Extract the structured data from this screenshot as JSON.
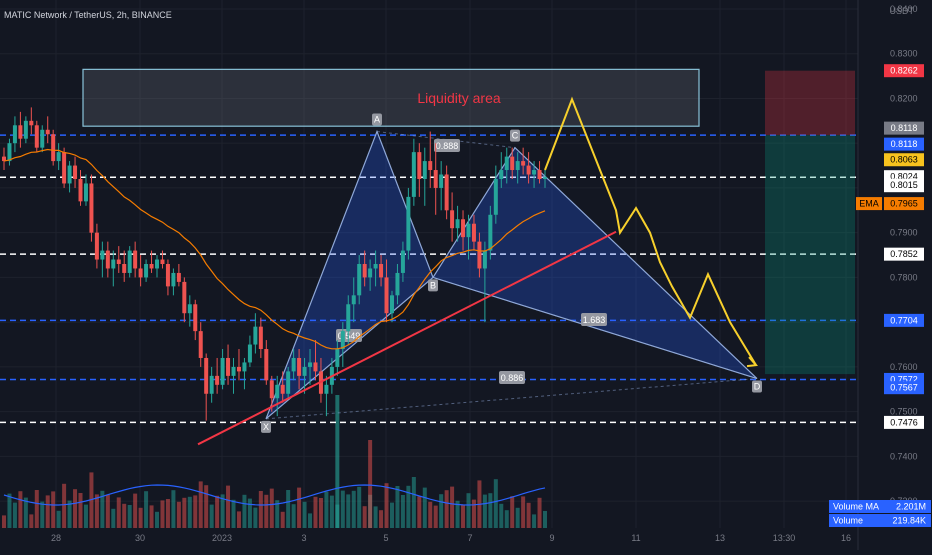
{
  "header": {
    "symbol": "MATIC Network / TetherUS, 2h, BINANCE",
    "unit": "USDT"
  },
  "liquidity_label": "Liquidity area",
  "price_tags": [
    {
      "value": "0.8262",
      "bg": "#f23645",
      "fg": "#ffffff"
    },
    {
      "value": "0.8118",
      "bg": "#787b86",
      "fg": "#ffffff"
    },
    {
      "value": "0.8118",
      "bg": "#2962ff",
      "fg": "#ffffff"
    },
    {
      "value": "0.8063",
      "bg": "#f7c31e",
      "fg": "#000000"
    },
    {
      "value": "0.8024",
      "bg": "#ffffff",
      "fg": "#000000",
      "sub": "01:45:52"
    },
    {
      "value": "0.8015",
      "bg": "#ffffff",
      "fg": "#000000"
    },
    {
      "value": "0.7965",
      "bg": "#f57c00",
      "fg": "#000000",
      "label": "EMA"
    },
    {
      "value": "0.7852",
      "bg": "#ffffff",
      "fg": "#000000"
    },
    {
      "value": "0.7704",
      "bg": "#2962ff",
      "fg": "#ffffff"
    },
    {
      "value": "0.7572",
      "bg": "#2962ff",
      "fg": "#ffffff"
    },
    {
      "value": "0.7567",
      "bg": "#2962ff",
      "fg": "#ffffff"
    },
    {
      "value": "0.7476",
      "bg": "#ffffff",
      "fg": "#000000"
    }
  ],
  "volume_tags": [
    {
      "label": "Volume MA",
      "value": "2.201M"
    },
    {
      "label": "Volume",
      "value": "219.84K"
    }
  ],
  "pattern": {
    "points": [
      {
        "name": "X",
        "x": "Jan 2",
        "y": 0.7484
      },
      {
        "name": "A",
        "x": "Jan 4 20:00",
        "y": 0.8126
      },
      {
        "name": "B",
        "x": "Jan 6 10:00",
        "y": 0.78
      },
      {
        "name": "C",
        "x": "Jan 7 20:00",
        "y": 0.809
      },
      {
        "name": "D",
        "x": "Jan 14 12:00",
        "y": 0.7574
      }
    ],
    "ratios": [
      "0.888",
      "0.549",
      "1.683",
      "0.886"
    ]
  },
  "chart_data": {
    "type": "candlestick",
    "title": "MATIC Network / TetherUS, 2h, BINANCE",
    "xlabel": "",
    "ylabel": "USDT",
    "x_ticks": [
      "28",
      "30",
      "2023",
      "3",
      "5",
      "7",
      "9",
      "11",
      "13",
      "13:30",
      "16"
    ],
    "y_ticks": [
      0.73,
      0.74,
      0.75,
      0.76,
      0.77,
      0.78,
      0.79,
      0.8,
      0.81,
      0.82,
      0.83,
      0.84
    ],
    "ylim": [
      0.724,
      0.842
    ],
    "levels_blue_dashed": [
      0.8118,
      0.7704,
      0.7572
    ],
    "levels_white_dashed": [
      0.8024,
      0.7852,
      0.7476
    ],
    "liquidity_area": {
      "y_top": 0.8265,
      "y_bottom": 0.8138
    },
    "position": {
      "entry": 0.8118,
      "stop": 0.8262,
      "target": 0.7584
    },
    "trendline": [
      {
        "x": "Dec 31 12:00",
        "y": 0.7427
      },
      {
        "x": "Jan 10 04:00",
        "y": 0.7902
      }
    ],
    "projection_path": [
      0.804,
      0.8198,
      0.804,
      0.795,
      0.79,
      0.7955,
      0.79,
      0.7834,
      0.778,
      0.771,
      0.7807,
      0.77,
      0.7604
    ],
    "series": [
      {
        "name": "EMA",
        "last": 0.7965
      },
      {
        "name": "Volume MA",
        "last": "2.201M"
      },
      {
        "name": "Volume",
        "last": "219.84K"
      }
    ],
    "candles": [
      [
        0.807,
        0.809,
        0.804,
        0.806
      ],
      [
        0.806,
        0.811,
        0.805,
        0.81
      ],
      [
        0.81,
        0.816,
        0.808,
        0.814
      ],
      [
        0.814,
        0.817,
        0.809,
        0.811
      ],
      [
        0.811,
        0.816,
        0.81,
        0.815
      ],
      [
        0.815,
        0.818,
        0.812,
        0.814
      ],
      [
        0.814,
        0.815,
        0.808,
        0.809
      ],
      [
        0.809,
        0.814,
        0.808,
        0.813
      ],
      [
        0.813,
        0.816,
        0.81,
        0.812
      ],
      [
        0.812,
        0.813,
        0.805,
        0.806
      ],
      [
        0.806,
        0.81,
        0.804,
        0.808
      ],
      [
        0.808,
        0.809,
        0.8,
        0.801
      ],
      [
        0.801,
        0.806,
        0.799,
        0.805
      ],
      [
        0.805,
        0.807,
        0.8,
        0.802
      ],
      [
        0.802,
        0.804,
        0.796,
        0.797
      ],
      [
        0.797,
        0.803,
        0.796,
        0.801
      ],
      [
        0.801,
        0.803,
        0.788,
        0.79
      ],
      [
        0.79,
        0.792,
        0.782,
        0.784
      ],
      [
        0.784,
        0.788,
        0.78,
        0.786
      ],
      [
        0.786,
        0.788,
        0.78,
        0.782
      ],
      [
        0.782,
        0.786,
        0.778,
        0.784
      ],
      [
        0.784,
        0.787,
        0.781,
        0.783
      ],
      [
        0.783,
        0.786,
        0.779,
        0.781
      ],
      [
        0.781,
        0.787,
        0.78,
        0.786
      ],
      [
        0.786,
        0.788,
        0.78,
        0.782
      ],
      [
        0.782,
        0.785,
        0.778,
        0.78
      ],
      [
        0.78,
        0.784,
        0.779,
        0.783
      ],
      [
        0.783,
        0.786,
        0.781,
        0.782
      ],
      [
        0.782,
        0.785,
        0.78,
        0.784
      ],
      [
        0.784,
        0.786,
        0.782,
        0.783
      ],
      [
        0.783,
        0.784,
        0.776,
        0.778
      ],
      [
        0.778,
        0.782,
        0.776,
        0.781
      ],
      [
        0.781,
        0.783,
        0.778,
        0.779
      ],
      [
        0.779,
        0.78,
        0.77,
        0.772
      ],
      [
        0.772,
        0.776,
        0.769,
        0.774
      ],
      [
        0.774,
        0.775,
        0.766,
        0.768
      ],
      [
        0.768,
        0.77,
        0.76,
        0.762
      ],
      [
        0.762,
        0.763,
        0.748,
        0.754
      ],
      [
        0.754,
        0.76,
        0.752,
        0.758
      ],
      [
        0.758,
        0.762,
        0.754,
        0.756
      ],
      [
        0.756,
        0.764,
        0.755,
        0.762
      ],
      [
        0.762,
        0.765,
        0.756,
        0.758
      ],
      [
        0.758,
        0.762,
        0.754,
        0.76
      ],
      [
        0.76,
        0.764,
        0.757,
        0.759
      ],
      [
        0.759,
        0.762,
        0.755,
        0.761
      ],
      [
        0.761,
        0.767,
        0.76,
        0.765
      ],
      [
        0.765,
        0.772,
        0.763,
        0.769
      ],
      [
        0.769,
        0.771,
        0.762,
        0.764
      ],
      [
        0.764,
        0.766,
        0.756,
        0.757
      ],
      [
        0.757,
        0.758,
        0.75,
        0.753
      ],
      [
        0.753,
        0.758,
        0.749,
        0.756
      ],
      [
        0.756,
        0.759,
        0.752,
        0.754
      ],
      [
        0.754,
        0.76,
        0.753,
        0.759
      ],
      [
        0.759,
        0.764,
        0.757,
        0.762
      ],
      [
        0.762,
        0.764,
        0.755,
        0.758
      ],
      [
        0.758,
        0.762,
        0.754,
        0.76
      ],
      [
        0.76,
        0.764,
        0.756,
        0.761
      ],
      [
        0.761,
        0.766,
        0.757,
        0.759
      ],
      [
        0.759,
        0.762,
        0.752,
        0.754
      ],
      [
        0.754,
        0.758,
        0.749,
        0.756
      ],
      [
        0.756,
        0.762,
        0.754,
        0.76
      ],
      [
        0.76,
        0.766,
        0.758,
        0.764
      ],
      [
        0.764,
        0.77,
        0.76,
        0.768
      ],
      [
        0.768,
        0.776,
        0.765,
        0.774
      ],
      [
        0.774,
        0.78,
        0.77,
        0.776
      ],
      [
        0.776,
        0.785,
        0.774,
        0.783
      ],
      [
        0.783,
        0.786,
        0.778,
        0.78
      ],
      [
        0.78,
        0.784,
        0.777,
        0.782
      ],
      [
        0.782,
        0.786,
        0.778,
        0.783
      ],
      [
        0.783,
        0.785,
        0.778,
        0.78
      ],
      [
        0.78,
        0.784,
        0.77,
        0.772
      ],
      [
        0.772,
        0.777,
        0.77,
        0.776
      ],
      [
        0.776,
        0.783,
        0.774,
        0.781
      ],
      [
        0.781,
        0.788,
        0.779,
        0.786
      ],
      [
        0.786,
        0.8,
        0.784,
        0.798
      ],
      [
        0.798,
        0.811,
        0.796,
        0.808
      ],
      [
        0.808,
        0.81,
        0.798,
        0.802
      ],
      [
        0.802,
        0.809,
        0.796,
        0.806
      ],
      [
        0.806,
        0.8126,
        0.8,
        0.804
      ],
      [
        0.804,
        0.81,
        0.794,
        0.8
      ],
      [
        0.8,
        0.806,
        0.795,
        0.803
      ],
      [
        0.803,
        0.805,
        0.793,
        0.795
      ],
      [
        0.795,
        0.799,
        0.788,
        0.791
      ],
      [
        0.791,
        0.796,
        0.788,
        0.793
      ],
      [
        0.793,
        0.795,
        0.786,
        0.789
      ],
      [
        0.789,
        0.794,
        0.784,
        0.792
      ],
      [
        0.792,
        0.794,
        0.786,
        0.788
      ],
      [
        0.788,
        0.79,
        0.78,
        0.782
      ],
      [
        0.782,
        0.788,
        0.77,
        0.786
      ],
      [
        0.786,
        0.796,
        0.784,
        0.794
      ],
      [
        0.794,
        0.805,
        0.792,
        0.802
      ],
      [
        0.802,
        0.808,
        0.8,
        0.804
      ],
      [
        0.804,
        0.809,
        0.801,
        0.807
      ],
      [
        0.807,
        0.809,
        0.802,
        0.804
      ],
      [
        0.804,
        0.808,
        0.801,
        0.806
      ],
      [
        0.806,
        0.809,
        0.803,
        0.805
      ],
      [
        0.805,
        0.808,
        0.801,
        0.803
      ],
      [
        0.803,
        0.806,
        0.8,
        0.804
      ],
      [
        0.804,
        0.806,
        0.801,
        0.802
      ],
      [
        0.802,
        0.804,
        0.8,
        0.8024
      ]
    ]
  }
}
